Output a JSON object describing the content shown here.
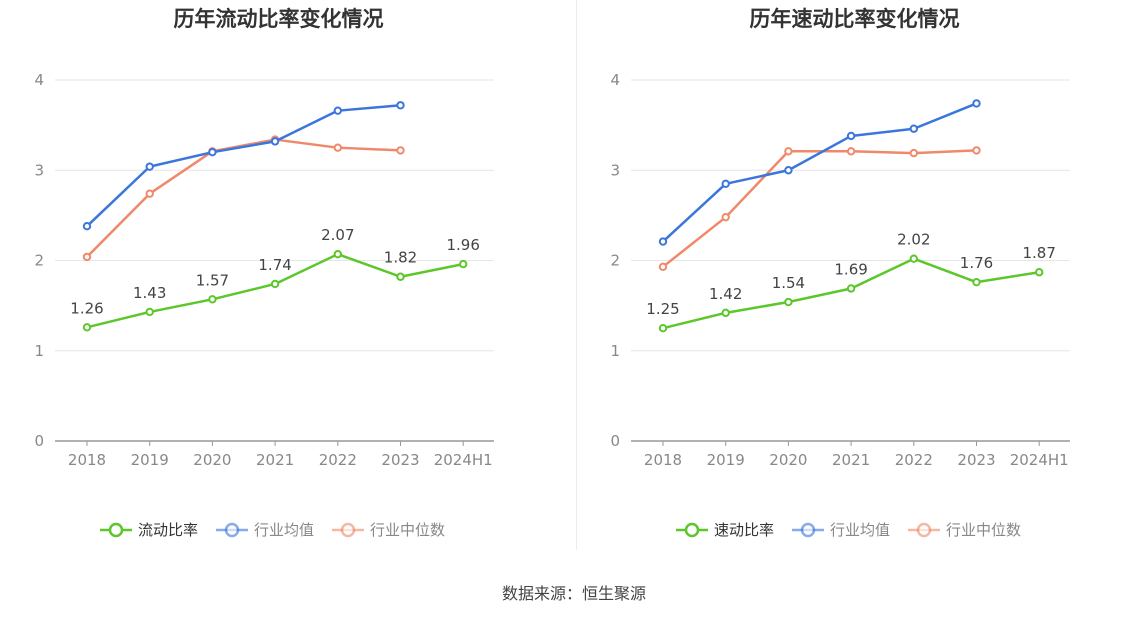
{
  "source_note": "数据来源：恒生聚源",
  "legend_colors": {
    "company": "#5cc72a",
    "industry_avg": "#3b76dc",
    "industry_median": "#f0896a"
  },
  "chart_data": [
    {
      "type": "line",
      "title": "历年流动比率变化情况",
      "categories": [
        "2018",
        "2019",
        "2020",
        "2021",
        "2022",
        "2023",
        "2024H1"
      ],
      "ylim": [
        0,
        4
      ],
      "yticks": [
        "0",
        "1",
        "2",
        "3",
        "4"
      ],
      "grid": true,
      "legend": "bottom",
      "series": [
        {
          "name": "流动比率",
          "color": "#5cc72a",
          "values": [
            1.26,
            1.43,
            1.57,
            1.74,
            2.07,
            1.82,
            1.96
          ],
          "labels": [
            "1.26",
            "1.43",
            "1.57",
            "1.74",
            "2.07",
            "1.82",
            "1.96"
          ]
        },
        {
          "name": "行业均值",
          "color": "#3b76dc",
          "values": [
            2.38,
            3.04,
            3.2,
            3.32,
            3.66,
            3.72,
            null
          ]
        },
        {
          "name": "行业中位数",
          "color": "#f0896a",
          "values": [
            2.04,
            2.74,
            3.21,
            3.34,
            3.25,
            3.22,
            null
          ]
        }
      ]
    },
    {
      "type": "line",
      "title": "历年速动比率变化情况",
      "categories": [
        "2018",
        "2019",
        "2020",
        "2021",
        "2022",
        "2023",
        "2024H1"
      ],
      "ylim": [
        0,
        4
      ],
      "yticks": [
        "0",
        "1",
        "2",
        "3",
        "4"
      ],
      "grid": true,
      "legend": "bottom",
      "series": [
        {
          "name": "速动比率",
          "color": "#5cc72a",
          "values": [
            1.25,
            1.42,
            1.54,
            1.69,
            2.02,
            1.76,
            1.87
          ],
          "labels": [
            "1.25",
            "1.42",
            "1.54",
            "1.69",
            "2.02",
            "1.76",
            "1.87"
          ]
        },
        {
          "name": "行业均值",
          "color": "#3b76dc",
          "values": [
            2.21,
            2.85,
            3.0,
            3.38,
            3.46,
            3.74,
            null
          ]
        },
        {
          "name": "行业中位数",
          "color": "#f0896a",
          "values": [
            1.93,
            2.48,
            3.21,
            3.21,
            3.19,
            3.22,
            null
          ]
        }
      ]
    }
  ]
}
